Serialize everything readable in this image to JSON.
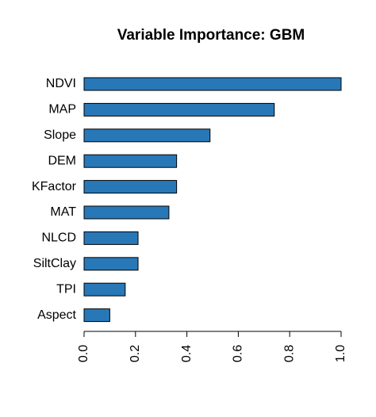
{
  "chart_data": {
    "type": "barh",
    "title": "Variable Importance: GBM",
    "categories": [
      "NDVI",
      "MAP",
      "Slope",
      "DEM",
      "KFactor",
      "MAT",
      "NLCD",
      "SiltClay",
      "TPI",
      "Aspect"
    ],
    "values": [
      1.0,
      0.74,
      0.49,
      0.36,
      0.36,
      0.33,
      0.21,
      0.21,
      0.16,
      0.1
    ],
    "color": "#2878b8",
    "xlim": [
      0,
      1
    ],
    "xticks": [
      {
        "value": 0,
        "label": "0.0"
      },
      0.2,
      0.4,
      0.6,
      0.8,
      {
        "value": 1,
        "label": "1.0"
      }
    ]
  }
}
